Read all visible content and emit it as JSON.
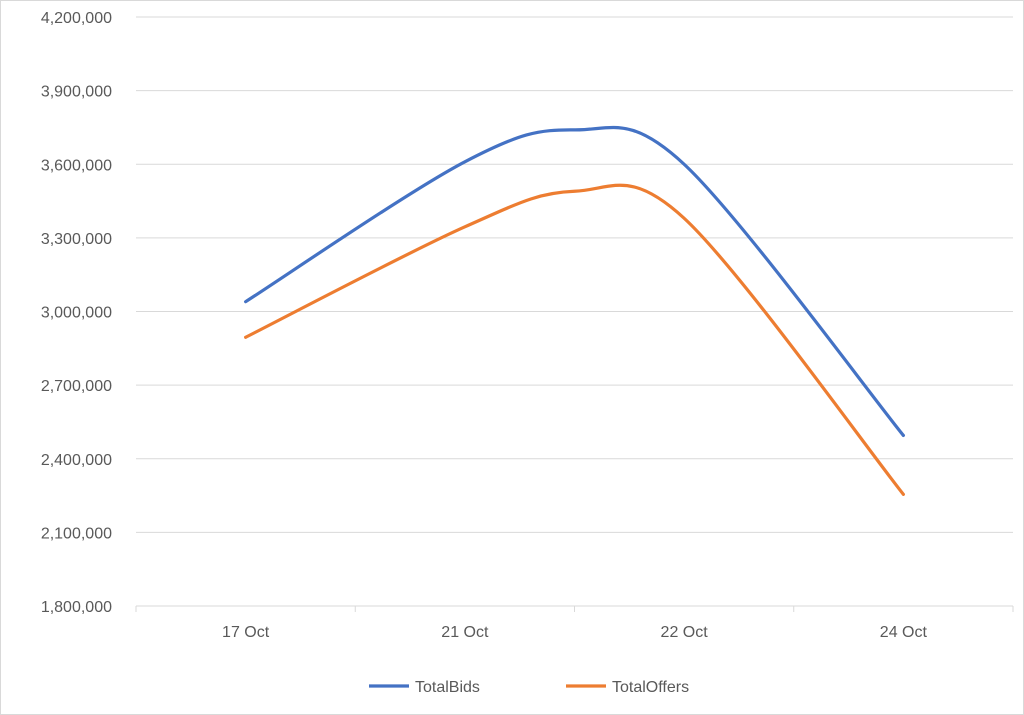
{
  "chart_data": {
    "type": "line",
    "smooth": true,
    "categories": [
      "17 Oct",
      "21 Oct",
      "22 Oct",
      "24 Oct"
    ],
    "ylim": [
      1800000,
      4200000
    ],
    "ytick_step": 300000,
    "y_tick_labels": [
      "1,800,000",
      "2,100,000",
      "2,400,000",
      "2,700,000",
      "3,000,000",
      "3,300,000",
      "3,600,000",
      "3,900,000",
      "4,200,000"
    ],
    "grid": true,
    "legend": "bottom",
    "series": [
      {
        "name": "TotalBids",
        "color": "#4472C4",
        "points": [
          {
            "x": 0,
            "y": 3040000
          },
          {
            "x": 1,
            "y": 3610000
          },
          {
            "x": 1.5,
            "y": 3740000
          },
          {
            "x": 2,
            "y": 3600000
          },
          {
            "x": 3,
            "y": 2495000
          }
        ]
      },
      {
        "name": "TotalOffers",
        "color": "#ED7D31",
        "points": [
          {
            "x": 0,
            "y": 2895000
          },
          {
            "x": 1,
            "y": 3345000
          },
          {
            "x": 1.5,
            "y": 3490000
          },
          {
            "x": 2,
            "y": 3380000
          },
          {
            "x": 3,
            "y": 2255000
          }
        ]
      }
    ]
  }
}
